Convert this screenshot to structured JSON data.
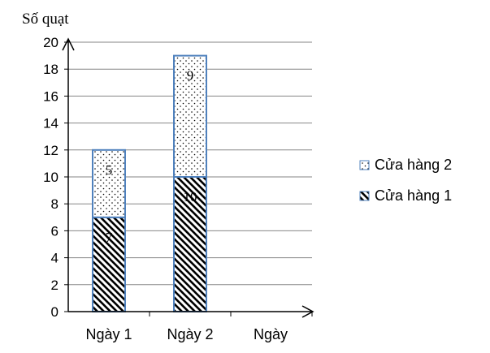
{
  "chart_data": {
    "type": "bar",
    "stacked": true,
    "title": "",
    "ylabel": "Số quạt",
    "xlabel": "Ngày",
    "categories": [
      "Ngày 1",
      "Ngày 2"
    ],
    "series": [
      {
        "name": "Cửa hàng 1",
        "values": [
          7,
          10
        ],
        "pattern": "diagonal-hatch",
        "data_labels": [
          "7",
          "10"
        ]
      },
      {
        "name": "Cửa hàng 2",
        "values": [
          5,
          9
        ],
        "pattern": "dotted",
        "data_labels": [
          "5",
          "9"
        ]
      }
    ],
    "ylim": [
      0,
      20
    ],
    "yticks": [
      "0",
      "2",
      "4",
      "6",
      "8",
      "10",
      "12",
      "14",
      "16",
      "18",
      "20"
    ],
    "grid": true,
    "legend_position": "right",
    "colors": {
      "border": "#4f81bd",
      "hatch": "#000000",
      "grid": "#868686"
    }
  }
}
